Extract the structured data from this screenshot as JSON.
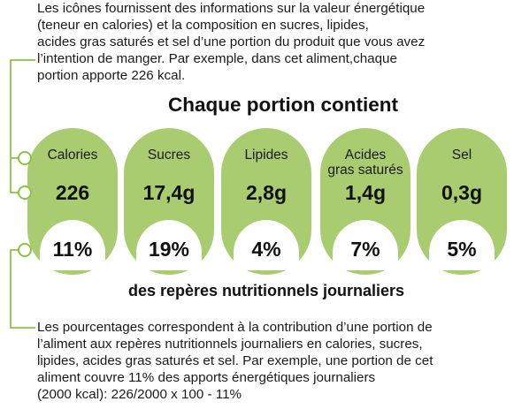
{
  "intro_lines": [
    "Les icônes fournissent des informations sur la valeur énergétique",
    "(teneur en calories) et la composition en sucres, lipides,",
    "acides gras saturés et sel d’une portion du produit que vous avez",
    "l’intention de manger. Par exemple, dans cet aliment,chaque",
    "portion apporte 226 kcal."
  ],
  "heading": "Chaque portion contient",
  "nutrients": [
    {
      "label_lines": [
        "Calories"
      ],
      "amount": "226",
      "percent": "11%"
    },
    {
      "label_lines": [
        "Sucres"
      ],
      "amount": "17,4g",
      "percent": "19%"
    },
    {
      "label_lines": [
        "Lipides"
      ],
      "amount": "2,8g",
      "percent": "4%"
    },
    {
      "label_lines": [
        "Acides",
        "gras saturés"
      ],
      "amount": "1,4g",
      "percent": "7%"
    },
    {
      "label_lines": [
        "Sel"
      ],
      "amount": "0,3g",
      "percent": "5%"
    }
  ],
  "subheading": "des repères nutritionnels journaliers",
  "explanation_lines": [
    "Les pourcentages correspondent à la contribution d’une portion de",
    "l’aliment aux repères nutritionnels journaliers en calories, sucres,",
    "lipides, acides gras saturés et sel. Par exemple, une portion de cet",
    "aliment couvre 11% des apports énergétiques journaliers",
    "(2000 kcal): 226/2000 x 100 - 11%"
  ],
  "colors": {
    "pill_green": "#a9cc70",
    "connector": "#8ec04a",
    "text": "#1a1a1a"
  }
}
